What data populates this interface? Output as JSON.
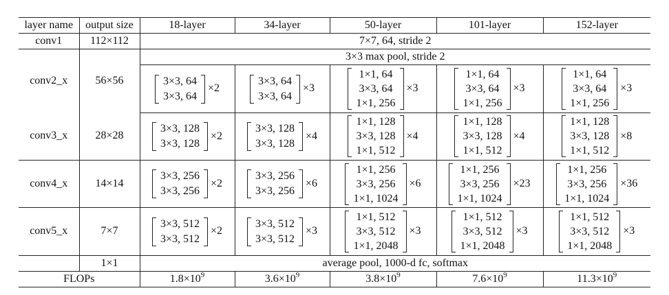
{
  "columns": [
    "layer name",
    "output size",
    "18-layer",
    "34-layer",
    "50-layer",
    "101-layer",
    "152-layer"
  ],
  "conv1": {
    "name": "conv1",
    "output": "112×112",
    "spec": "7×7, 64, stride 2"
  },
  "maxpool": {
    "spec": "3×3 max pool, stride 2"
  },
  "conv2": {
    "name": "conv2_x",
    "output": "56×56",
    "b18": {
      "lines": [
        "3×3, 64",
        "3×3, 64"
      ],
      "mult": "×2"
    },
    "b34": {
      "lines": [
        "3×3, 64",
        "3×3, 64"
      ],
      "mult": "×3"
    },
    "b50": {
      "lines": [
        "1×1, 64",
        "3×3, 64",
        "1×1, 256"
      ],
      "mult": "×3"
    },
    "b101": {
      "lines": [
        "1×1, 64",
        "3×3, 64",
        "1×1, 256"
      ],
      "mult": "×3"
    },
    "b152": {
      "lines": [
        "1×1, 64",
        "3×3, 64",
        "1×1, 256"
      ],
      "mult": "×3"
    }
  },
  "conv3": {
    "name": "conv3_x",
    "output": "28×28",
    "b18": {
      "lines": [
        "3×3, 128",
        "3×3, 128"
      ],
      "mult": "×2"
    },
    "b34": {
      "lines": [
        "3×3, 128",
        "3×3, 128"
      ],
      "mult": "×4"
    },
    "b50": {
      "lines": [
        "1×1, 128",
        "3×3, 128",
        "1×1, 512"
      ],
      "mult": "×4"
    },
    "b101": {
      "lines": [
        "1×1, 128",
        "3×3, 128",
        "1×1, 512"
      ],
      "mult": "×4"
    },
    "b152": {
      "lines": [
        "1×1, 128",
        "3×3, 128",
        "1×1, 512"
      ],
      "mult": "×8"
    }
  },
  "conv4": {
    "name": "conv4_x",
    "output": "14×14",
    "b18": {
      "lines": [
        "3×3, 256",
        "3×3, 256"
      ],
      "mult": "×2"
    },
    "b34": {
      "lines": [
        "3×3, 256",
        "3×3, 256"
      ],
      "mult": "×6"
    },
    "b50": {
      "lines": [
        "1×1, 256",
        "3×3, 256",
        "1×1, 1024"
      ],
      "mult": "×6"
    },
    "b101": {
      "lines": [
        "1×1, 256",
        "3×3, 256",
        "1×1, 1024"
      ],
      "mult": "×23"
    },
    "b152": {
      "lines": [
        "1×1, 256",
        "3×3, 256",
        "1×1, 1024"
      ],
      "mult": "×36"
    }
  },
  "conv5": {
    "name": "conv5_x",
    "output": "7×7",
    "b18": {
      "lines": [
        "3×3, 512",
        "3×3, 512"
      ],
      "mult": "×2"
    },
    "b34": {
      "lines": [
        "3×3, 512",
        "3×3, 512"
      ],
      "mult": "×3"
    },
    "b50": {
      "lines": [
        "1×1, 512",
        "3×3, 512",
        "1×1, 2048"
      ],
      "mult": "×3"
    },
    "b101": {
      "lines": [
        "1×1, 512",
        "3×3, 512",
        "1×1, 2048"
      ],
      "mult": "×3"
    },
    "b152": {
      "lines": [
        "1×1, 512",
        "3×3, 512",
        "1×1, 2048"
      ],
      "mult": "×3"
    }
  },
  "pool": {
    "output": "1×1",
    "spec": "average pool, 1000-d fc, softmax"
  },
  "flops": {
    "label": "FLOPs",
    "values": [
      {
        "mantissa": "1.8×10",
        "exp": "9"
      },
      {
        "mantissa": "3.6×10",
        "exp": "9"
      },
      {
        "mantissa": "3.8×10",
        "exp": "9"
      },
      {
        "mantissa": "7.6×10",
        "exp": "9"
      },
      {
        "mantissa": "11.3×10",
        "exp": "9"
      }
    ]
  }
}
